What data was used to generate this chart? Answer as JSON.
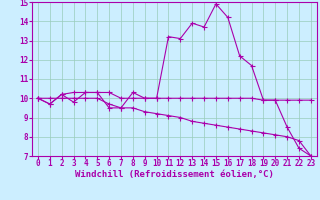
{
  "xlabel": "Windchill (Refroidissement éolien,°C)",
  "background_color": "#cceeff",
  "line_color": "#aa00aa",
  "grid_color": "#99ccbb",
  "xdata": [
    0,
    1,
    2,
    3,
    4,
    5,
    6,
    7,
    8,
    9,
    10,
    11,
    12,
    13,
    14,
    15,
    16,
    17,
    18,
    19,
    20,
    21,
    22,
    23
  ],
  "line1": [
    10.0,
    9.7,
    10.2,
    9.8,
    10.3,
    10.3,
    9.5,
    9.5,
    10.3,
    10.0,
    10.0,
    13.2,
    13.1,
    13.9,
    13.7,
    14.9,
    14.2,
    12.2,
    11.7,
    9.9,
    9.9,
    8.5,
    7.4,
    7.0
  ],
  "line2": [
    10.0,
    9.7,
    10.2,
    10.3,
    10.3,
    10.3,
    10.3,
    10.0,
    10.0,
    10.0,
    10.0,
    10.0,
    10.0,
    10.0,
    10.0,
    10.0,
    10.0,
    10.0,
    10.0,
    9.9,
    9.9,
    9.9,
    9.9,
    9.9
  ],
  "line3": [
    10.0,
    10.0,
    10.0,
    10.0,
    10.0,
    10.0,
    9.7,
    9.5,
    9.5,
    9.3,
    9.2,
    9.1,
    9.0,
    8.8,
    8.7,
    8.6,
    8.5,
    8.4,
    8.3,
    8.2,
    8.1,
    8.0,
    7.8,
    7.0
  ],
  "ylim": [
    7,
    15
  ],
  "xlim": [
    -0.5,
    23.5
  ],
  "yticks": [
    7,
    8,
    9,
    10,
    11,
    12,
    13,
    14,
    15
  ],
  "xticks": [
    0,
    1,
    2,
    3,
    4,
    5,
    6,
    7,
    8,
    9,
    10,
    11,
    12,
    13,
    14,
    15,
    16,
    17,
    18,
    19,
    20,
    21,
    22,
    23
  ],
  "tick_fontsize": 5.5,
  "xlabel_fontsize": 6.5,
  "linewidth": 0.8,
  "markersize": 2.0
}
